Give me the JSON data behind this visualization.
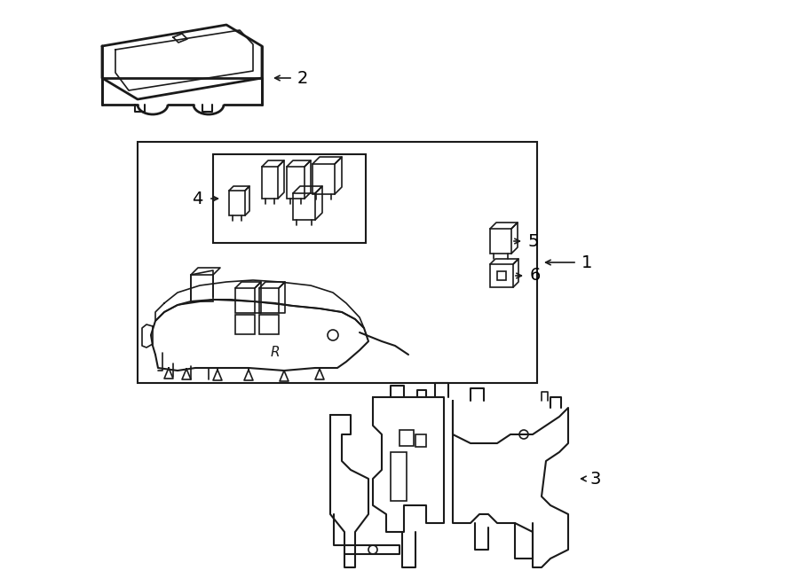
{
  "background_color": "#ffffff",
  "line_color": "#1a1a1a",
  "line_width": 1.5,
  "components": {
    "part1_label": "1",
    "part2_label": "2",
    "part3_label": "3",
    "part4_label": "4",
    "part5_label": "5",
    "part6_label": "6"
  },
  "font_size": 14,
  "fig_width": 9.0,
  "fig_height": 6.61,
  "dpi": 100
}
